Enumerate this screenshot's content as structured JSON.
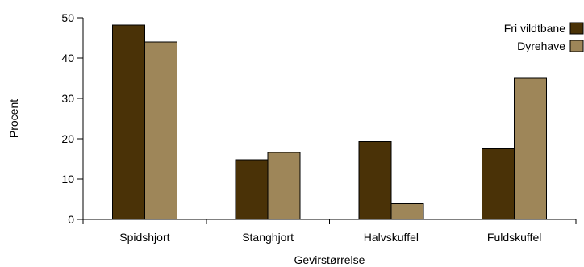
{
  "chart_data": {
    "type": "bar",
    "categories": [
      "Spidshjort",
      "Stanghjort",
      "Halvskuffel",
      "Fuldskuffel"
    ],
    "series": [
      {
        "name": "Fri vildtbane",
        "values": [
          48.2,
          14.8,
          19.3,
          17.5
        ],
        "color": "#4a3207"
      },
      {
        "name": "Dyrehave",
        "values": [
          44.0,
          16.6,
          3.9,
          35.0
        ],
        "color": "#9e8659"
      }
    ],
    "xlabel": "Gevirstørrelse",
    "ylabel": "Procent",
    "ylim": [
      0,
      50
    ],
    "yticks": [
      0,
      10,
      20,
      30,
      40,
      50
    ],
    "grid": false,
    "legend_position": "top-right"
  }
}
